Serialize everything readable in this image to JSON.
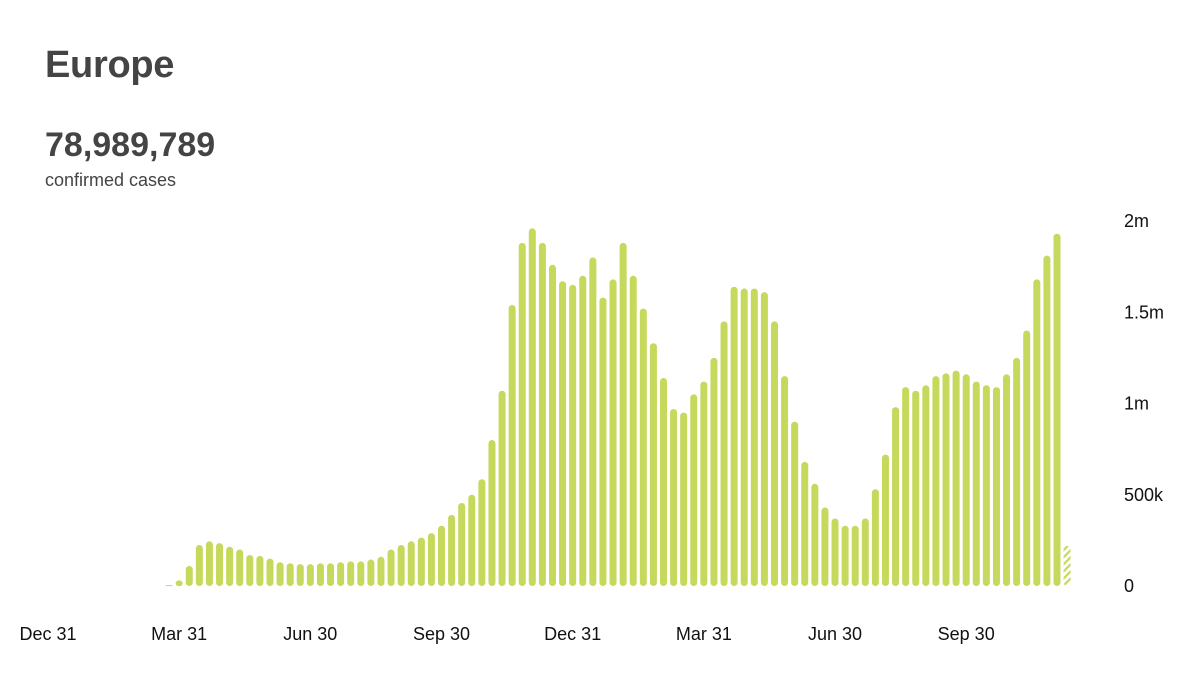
{
  "header": {
    "title": "Europe",
    "total": "78,989,789",
    "subtitle": "confirmed cases"
  },
  "chart_data": {
    "type": "bar",
    "title": "Europe",
    "ylim": [
      0,
      2000000
    ],
    "y_ticks": [
      {
        "value": 0,
        "label": "0"
      },
      {
        "value": 500000,
        "label": "500k"
      },
      {
        "value": 1000000,
        "label": "1m"
      },
      {
        "value": 1500000,
        "label": "1.5m"
      },
      {
        "value": 2000000,
        "label": "2m"
      }
    ],
    "x_ticks": [
      {
        "week": 0,
        "label": "Dec 31"
      },
      {
        "week": 13,
        "label": "Mar 31"
      },
      {
        "week": 26,
        "label": "Jun 30"
      },
      {
        "week": 39,
        "label": "Sep 30"
      },
      {
        "week": 52,
        "label": "Dec 31"
      },
      {
        "week": 65,
        "label": "Mar 31"
      },
      {
        "week": 78,
        "label": "Jun 30"
      },
      {
        "week": 91,
        "label": "Sep 30"
      }
    ],
    "series": [
      {
        "values": [
          0,
          0,
          0,
          0,
          0,
          0,
          0,
          0,
          0,
          0,
          0,
          0,
          5000,
          30000,
          110000,
          225000,
          245000,
          235000,
          215000,
          200000,
          170000,
          165000,
          150000,
          130000,
          125000,
          120000,
          120000,
          125000,
          125000,
          130000,
          135000,
          135000,
          145000,
          160000,
          200000,
          225000,
          245000,
          265000,
          290000,
          330000,
          390000,
          455000,
          500000,
          585000,
          800000,
          1070000,
          1540000,
          1880000,
          1960000,
          1880000,
          1760000,
          1670000,
          1650000,
          1700000,
          1800000,
          1580000,
          1680000,
          1880000,
          1700000,
          1520000,
          1330000,
          1140000,
          970000,
          950000,
          1050000,
          1120000,
          1250000,
          1450000,
          1640000,
          1630000,
          1630000,
          1610000,
          1450000,
          1150000,
          900000,
          680000,
          560000,
          430000,
          370000,
          330000,
          330000,
          370000,
          530000,
          720000,
          980000,
          1090000,
          1070000,
          1100000,
          1150000,
          1165000,
          1180000,
          1160000,
          1120000,
          1100000,
          1090000,
          1160000,
          1250000,
          1400000,
          1680000,
          1810000,
          1930000,
          220000
        ]
      }
    ],
    "partial_last": true,
    "colors": {
      "bar": "#c6d95c",
      "bar_partial": "#c6d95c"
    }
  }
}
